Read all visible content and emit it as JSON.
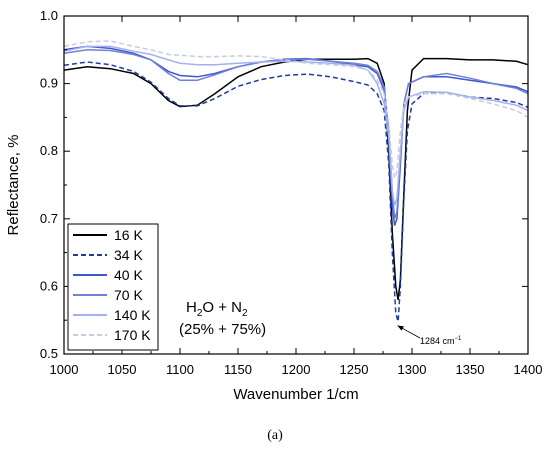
{
  "chart_data": {
    "type": "line",
    "xlabel": "Wavenumber 1/cm",
    "ylabel": "Reflectance, %",
    "xlim": [
      1000,
      1400
    ],
    "ylim": [
      0.5,
      1.0
    ],
    "x_ticks": [
      "1000",
      "1050",
      "1100",
      "1150",
      "1200",
      "1250",
      "1300",
      "1350",
      "1400"
    ],
    "y_ticks": [
      "0.5",
      "0.6",
      "0.7",
      "0.8",
      "0.9",
      "1.0"
    ],
    "grid": false,
    "legend_position": "bottom-left",
    "annotation": {
      "composition_line1_main": "H",
      "composition_line1_sub1": "2",
      "composition_line1_mid": "O +  N",
      "composition_line1_sub2": "2",
      "composition_line2": "(25% + 75%)",
      "peak_label": "1284 cm",
      "peak_label_sup": "−1",
      "peak_x": 1284,
      "peak_y": 0.545
    },
    "panel_label": "(a)",
    "series": [
      {
        "name": "16 K",
        "color": "#000000",
        "dash": "solid",
        "points": [
          [
            1000,
            0.92
          ],
          [
            1020,
            0.925
          ],
          [
            1040,
            0.922
          ],
          [
            1060,
            0.915
          ],
          [
            1075,
            0.9
          ],
          [
            1090,
            0.875
          ],
          [
            1100,
            0.866
          ],
          [
            1115,
            0.868
          ],
          [
            1130,
            0.885
          ],
          [
            1150,
            0.91
          ],
          [
            1170,
            0.925
          ],
          [
            1190,
            0.932
          ],
          [
            1210,
            0.936
          ],
          [
            1230,
            0.936
          ],
          [
            1250,
            0.936
          ],
          [
            1262,
            0.937
          ],
          [
            1270,
            0.93
          ],
          [
            1276,
            0.9
          ],
          [
            1280,
            0.8
          ],
          [
            1283,
            0.68
          ],
          [
            1286,
            0.6
          ],
          [
            1288,
            0.58
          ],
          [
            1290,
            0.61
          ],
          [
            1293,
            0.74
          ],
          [
            1296,
            0.86
          ],
          [
            1300,
            0.92
          ],
          [
            1310,
            0.937
          ],
          [
            1330,
            0.937
          ],
          [
            1350,
            0.935
          ],
          [
            1370,
            0.935
          ],
          [
            1390,
            0.933
          ],
          [
            1400,
            0.928
          ]
        ]
      },
      {
        "name": "34 K",
        "color": "#1f3d9e",
        "dash": "dashed",
        "points": [
          [
            1000,
            0.927
          ],
          [
            1020,
            0.932
          ],
          [
            1040,
            0.928
          ],
          [
            1060,
            0.918
          ],
          [
            1075,
            0.902
          ],
          [
            1090,
            0.878
          ],
          [
            1100,
            0.867
          ],
          [
            1115,
            0.867
          ],
          [
            1130,
            0.878
          ],
          [
            1150,
            0.896
          ],
          [
            1170,
            0.906
          ],
          [
            1190,
            0.912
          ],
          [
            1210,
            0.914
          ],
          [
            1230,
            0.91
          ],
          [
            1250,
            0.903
          ],
          [
            1262,
            0.898
          ],
          [
            1270,
            0.885
          ],
          [
            1276,
            0.86
          ],
          [
            1280,
            0.78
          ],
          [
            1283,
            0.65
          ],
          [
            1286,
            0.56
          ],
          [
            1288,
            0.548
          ],
          [
            1290,
            0.6
          ],
          [
            1293,
            0.73
          ],
          [
            1296,
            0.83
          ],
          [
            1300,
            0.87
          ],
          [
            1310,
            0.885
          ],
          [
            1330,
            0.887
          ],
          [
            1350,
            0.88
          ],
          [
            1370,
            0.878
          ],
          [
            1390,
            0.872
          ],
          [
            1400,
            0.865
          ]
        ]
      },
      {
        "name": "40 K",
        "color": "#3f58c8",
        "dash": "solid",
        "points": [
          [
            1000,
            0.95
          ],
          [
            1020,
            0.955
          ],
          [
            1040,
            0.952
          ],
          [
            1060,
            0.945
          ],
          [
            1075,
            0.935
          ],
          [
            1090,
            0.918
          ],
          [
            1100,
            0.912
          ],
          [
            1115,
            0.91
          ],
          [
            1130,
            0.915
          ],
          [
            1150,
            0.925
          ],
          [
            1170,
            0.932
          ],
          [
            1190,
            0.936
          ],
          [
            1210,
            0.937
          ],
          [
            1230,
            0.933
          ],
          [
            1250,
            0.928
          ],
          [
            1262,
            0.925
          ],
          [
            1270,
            0.915
          ],
          [
            1276,
            0.89
          ],
          [
            1280,
            0.82
          ],
          [
            1283,
            0.72
          ],
          [
            1285,
            0.69
          ],
          [
            1287,
            0.7
          ],
          [
            1290,
            0.78
          ],
          [
            1293,
            0.87
          ],
          [
            1297,
            0.9
          ],
          [
            1310,
            0.91
          ],
          [
            1330,
            0.91
          ],
          [
            1350,
            0.905
          ],
          [
            1370,
            0.9
          ],
          [
            1390,
            0.895
          ],
          [
            1400,
            0.888
          ]
        ]
      },
      {
        "name": "70 K",
        "color": "#6d82dc",
        "dash": "solid",
        "points": [
          [
            1000,
            0.945
          ],
          [
            1020,
            0.95
          ],
          [
            1040,
            0.949
          ],
          [
            1060,
            0.943
          ],
          [
            1075,
            0.935
          ],
          [
            1090,
            0.915
          ],
          [
            1100,
            0.905
          ],
          [
            1115,
            0.905
          ],
          [
            1130,
            0.913
          ],
          [
            1150,
            0.925
          ],
          [
            1170,
            0.932
          ],
          [
            1190,
            0.935
          ],
          [
            1210,
            0.936
          ],
          [
            1230,
            0.933
          ],
          [
            1250,
            0.93
          ],
          [
            1262,
            0.927
          ],
          [
            1270,
            0.918
          ],
          [
            1276,
            0.895
          ],
          [
            1280,
            0.83
          ],
          [
            1283,
            0.74
          ],
          [
            1285,
            0.7
          ],
          [
            1287,
            0.71
          ],
          [
            1290,
            0.79
          ],
          [
            1293,
            0.87
          ],
          [
            1297,
            0.9
          ],
          [
            1310,
            0.91
          ],
          [
            1330,
            0.915
          ],
          [
            1350,
            0.908
          ],
          [
            1370,
            0.9
          ],
          [
            1390,
            0.893
          ],
          [
            1400,
            0.885
          ]
        ]
      },
      {
        "name": "140 K",
        "color": "#a6b1ec",
        "dash": "solid",
        "points": [
          [
            1000,
            0.948
          ],
          [
            1020,
            0.955
          ],
          [
            1040,
            0.955
          ],
          [
            1060,
            0.948
          ],
          [
            1075,
            0.943
          ],
          [
            1090,
            0.935
          ],
          [
            1100,
            0.93
          ],
          [
            1115,
            0.928
          ],
          [
            1130,
            0.928
          ],
          [
            1150,
            0.93
          ],
          [
            1170,
            0.932
          ],
          [
            1190,
            0.933
          ],
          [
            1210,
            0.932
          ],
          [
            1230,
            0.93
          ],
          [
            1250,
            0.927
          ],
          [
            1262,
            0.92
          ],
          [
            1270,
            0.9
          ],
          [
            1276,
            0.87
          ],
          [
            1280,
            0.82
          ],
          [
            1283,
            0.74
          ],
          [
            1285,
            0.72
          ],
          [
            1287,
            0.73
          ],
          [
            1290,
            0.8
          ],
          [
            1293,
            0.86
          ],
          [
            1297,
            0.88
          ],
          [
            1310,
            0.888
          ],
          [
            1330,
            0.887
          ],
          [
            1350,
            0.88
          ],
          [
            1370,
            0.875
          ],
          [
            1390,
            0.868
          ],
          [
            1400,
            0.86
          ]
        ]
      },
      {
        "name": "170 K",
        "color": "#c7cbe8",
        "dash": "dashed",
        "points": [
          [
            1000,
            0.955
          ],
          [
            1020,
            0.962
          ],
          [
            1040,
            0.963
          ],
          [
            1060,
            0.955
          ],
          [
            1075,
            0.95
          ],
          [
            1090,
            0.943
          ],
          [
            1100,
            0.942
          ],
          [
            1115,
            0.94
          ],
          [
            1130,
            0.94
          ],
          [
            1150,
            0.941
          ],
          [
            1170,
            0.94
          ],
          [
            1190,
            0.935
          ],
          [
            1210,
            0.93
          ],
          [
            1230,
            0.928
          ],
          [
            1250,
            0.925
          ],
          [
            1262,
            0.92
          ],
          [
            1270,
            0.905
          ],
          [
            1276,
            0.885
          ],
          [
            1280,
            0.84
          ],
          [
            1283,
            0.78
          ],
          [
            1285,
            0.76
          ],
          [
            1287,
            0.77
          ],
          [
            1290,
            0.83
          ],
          [
            1293,
            0.87
          ],
          [
            1297,
            0.88
          ],
          [
            1310,
            0.885
          ],
          [
            1330,
            0.885
          ],
          [
            1350,
            0.878
          ],
          [
            1370,
            0.87
          ],
          [
            1390,
            0.86
          ],
          [
            1400,
            0.85
          ]
        ]
      }
    ]
  }
}
